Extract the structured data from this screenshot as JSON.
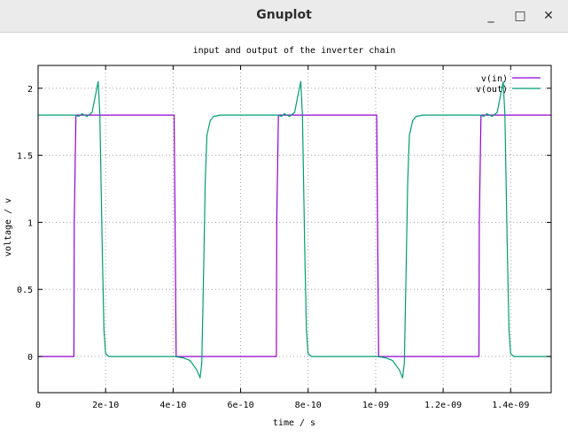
{
  "window": {
    "title": "Gnuplot",
    "minimize_icon": "minimize-icon",
    "maximize_icon": "maximize-icon",
    "close_icon": "close-icon",
    "minimize_glyph": "_",
    "maximize_glyph": "□",
    "close_glyph": "✕"
  },
  "chart_data": {
    "type": "line",
    "title": "input and output of the inverter chain",
    "xlabel": "time / s",
    "ylabel": "voltage / v",
    "xlim": [
      0,
      1.52e-09
    ],
    "ylim": [
      -0.27,
      2.17
    ],
    "grid": true,
    "legend_position": "top-right",
    "xticks": [
      {
        "value": 0,
        "label": "0"
      },
      {
        "value": 2e-10,
        "label": "2e-10"
      },
      {
        "value": 4e-10,
        "label": "4e-10"
      },
      {
        "value": 6e-10,
        "label": "6e-10"
      },
      {
        "value": 8e-10,
        "label": "8e-10"
      },
      {
        "value": 1e-09,
        "label": "1e-09"
      },
      {
        "value": 1.2e-09,
        "label": "1.2e-09"
      },
      {
        "value": 1.4e-09,
        "label": "1.4e-09"
      }
    ],
    "yticks": [
      {
        "value": 0,
        "label": "0"
      },
      {
        "value": 0.5,
        "label": "0.5"
      },
      {
        "value": 1,
        "label": "1"
      },
      {
        "value": 1.5,
        "label": "1.5"
      },
      {
        "value": 2,
        "label": "2"
      }
    ],
    "series": [
      {
        "name": "v(in)",
        "color": "#9400d3",
        "x": [
          0,
          1.06e-10,
          1.07e-10,
          1.12e-10,
          4.03e-10,
          4.06e-10,
          4.09e-10,
          7.06e-10,
          7.07e-10,
          7.12e-10,
          1.003e-09,
          1.006e-09,
          1.009e-09,
          1.306e-09,
          1.307e-09,
          1.312e-09,
          1.52e-09
        ],
        "y": [
          0,
          0,
          1.0,
          1.8,
          1.8,
          0.9,
          0,
          0,
          1.0,
          1.8,
          1.8,
          0.9,
          0,
          0,
          1.0,
          1.8,
          1.8
        ]
      },
      {
        "name": "v(out)",
        "color": "#009e73",
        "x": [
          0,
          1.1e-10,
          1.2e-10,
          1.3e-10,
          1.45e-10,
          1.6e-10,
          1.7e-10,
          1.78e-10,
          1.83e-10,
          1.9e-10,
          1.95e-10,
          2e-10,
          2.1e-10,
          2.2e-10,
          4e-10,
          4.05e-10,
          4.3e-10,
          4.5e-10,
          4.7e-10,
          4.8e-10,
          4.85e-10,
          4.9e-10,
          4.95e-10,
          5e-10,
          5.1e-10,
          5.2e-10,
          5.4e-10,
          5.6e-10,
          7e-10,
          7.1e-10,
          7.2e-10,
          7.3e-10,
          7.45e-10,
          7.6e-10,
          7.7e-10,
          7.78e-10,
          7.83e-10,
          7.9e-10,
          7.95e-10,
          8e-10,
          8.1e-10,
          8.2e-10,
          1e-09,
          1.005e-09,
          1.03e-09,
          1.05e-09,
          1.07e-09,
          1.08e-09,
          1.085e-09,
          1.09e-09,
          1.095e-09,
          1.1e-09,
          1.11e-09,
          1.12e-09,
          1.14e-09,
          1.16e-09,
          1.3e-09,
          1.31e-09,
          1.32e-09,
          1.33e-09,
          1.345e-09,
          1.36e-09,
          1.37e-09,
          1.378e-09,
          1.383e-09,
          1.39e-09,
          1.395e-09,
          1.4e-09,
          1.41e-09,
          1.42e-09,
          1.52e-09
        ],
        "y": [
          1.8,
          1.8,
          1.79,
          1.81,
          1.79,
          1.82,
          1.95,
          2.05,
          1.8,
          0.8,
          0.2,
          0.02,
          0,
          0,
          0,
          0,
          -0.01,
          -0.03,
          -0.1,
          -0.16,
          -0.05,
          0.6,
          1.3,
          1.65,
          1.76,
          1.79,
          1.8,
          1.8,
          1.8,
          1.8,
          1.79,
          1.81,
          1.79,
          1.82,
          1.95,
          2.05,
          1.8,
          0.8,
          0.2,
          0.02,
          0,
          0,
          0,
          0,
          -0.01,
          -0.03,
          -0.1,
          -0.16,
          -0.05,
          0.6,
          1.3,
          1.65,
          1.76,
          1.79,
          1.8,
          1.8,
          1.8,
          1.8,
          1.79,
          1.81,
          1.79,
          1.82,
          1.95,
          2.05,
          1.8,
          0.8,
          0.2,
          0.02,
          0,
          0,
          0
        ]
      }
    ]
  }
}
